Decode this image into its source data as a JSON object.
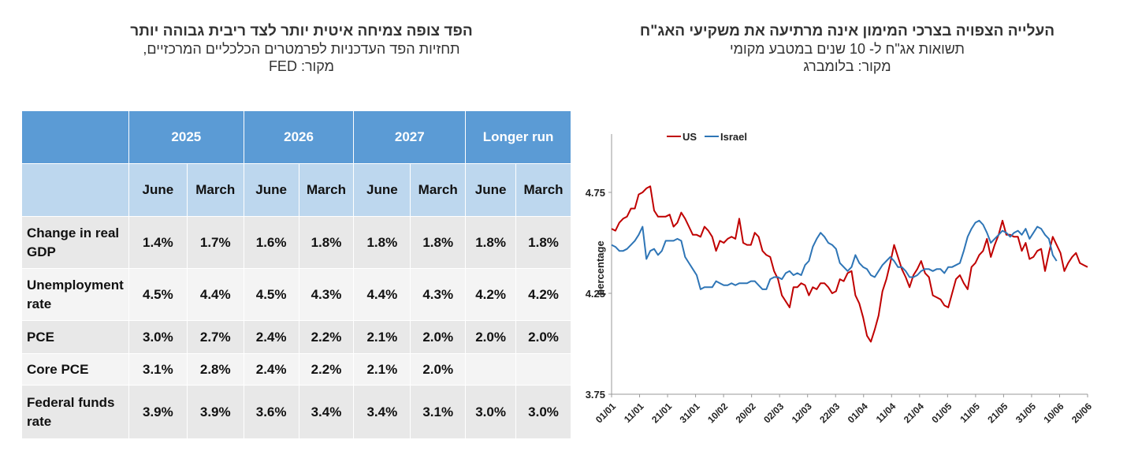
{
  "left_panel": {
    "title": "הפד צופה צמיחה איטית יותר לצד ריבית גבוהה יותר",
    "subtitle": "תחזיות הפד העדכניות לפרמטרים הכלכליים המרכזיים,",
    "source": "מקור: FED"
  },
  "right_panel": {
    "title": "העלייה הצפויה בצרכי המימון אינה מרתיעה את משקיעי האג\"ח",
    "subtitle": "תשואות אג\"ח ל- 10 שנים במטבע מקומי",
    "source": "מקור: בלומברג"
  },
  "table": {
    "years": [
      "2025",
      "2026",
      "2027",
      "Longer run"
    ],
    "months": [
      "June",
      "March",
      "June",
      "March",
      "June",
      "March",
      "June",
      "March"
    ],
    "rows": [
      {
        "label": "Change in real GDP",
        "values": [
          "1.4%",
          "1.7%",
          "1.6%",
          "1.8%",
          "1.8%",
          "1.8%",
          "1.8%",
          "1.8%"
        ]
      },
      {
        "label": "Unemployment rate",
        "values": [
          "4.5%",
          "4.4%",
          "4.5%",
          "4.3%",
          "4.4%",
          "4.3%",
          "4.2%",
          "4.2%"
        ]
      },
      {
        "label": "PCE",
        "values": [
          "3.0%",
          "2.7%",
          "2.4%",
          "2.2%",
          "2.1%",
          "2.0%",
          "2.0%",
          "2.0%"
        ]
      },
      {
        "label": "Core PCE",
        "values": [
          "3.1%",
          "2.8%",
          "2.4%",
          "2.2%",
          "2.1%",
          "2.0%",
          "",
          ""
        ]
      },
      {
        "label": "Federal funds rate",
        "values": [
          "3.9%",
          "3.9%",
          "3.6%",
          "3.4%",
          "3.4%",
          "3.1%",
          "3.0%",
          "3.0%"
        ]
      }
    ]
  },
  "chart_data": {
    "type": "line",
    "ylabel": "percentage",
    "ylim": [
      3.75,
      5.0
    ],
    "yticks": [
      "3.75",
      "4.25",
      "4.75"
    ],
    "x_ticks": [
      "01/01",
      "11/01",
      "21/01",
      "31/01",
      "10/02",
      "20/02",
      "02/03",
      "12/03",
      "22/03",
      "01/04",
      "11/04",
      "21/04",
      "01/05",
      "11/05",
      "21/05",
      "31/05",
      "10/06",
      "20/06"
    ],
    "legend_position": "top-left",
    "series": [
      {
        "name": "US",
        "color": "#c00000",
        "values": [
          4.57,
          4.56,
          4.6,
          4.62,
          4.63,
          4.67,
          4.67,
          4.74,
          4.75,
          4.77,
          4.78,
          4.66,
          4.63,
          4.63,
          4.63,
          4.64,
          4.58,
          4.6,
          4.65,
          4.62,
          4.58,
          4.54,
          4.54,
          4.53,
          4.58,
          4.56,
          4.53,
          4.46,
          4.51,
          4.5,
          4.52,
          4.53,
          4.52,
          4.62,
          4.5,
          4.49,
          4.49,
          4.55,
          4.53,
          4.46,
          4.44,
          4.43,
          4.36,
          4.32,
          4.24,
          4.21,
          4.18,
          4.28,
          4.28,
          4.3,
          4.29,
          4.24,
          4.28,
          4.27,
          4.3,
          4.3,
          4.28,
          4.25,
          4.26,
          4.32,
          4.31,
          4.35,
          4.36,
          4.24,
          4.2,
          4.13,
          4.04,
          4.01,
          4.07,
          4.14,
          4.26,
          4.32,
          4.4,
          4.49,
          4.43,
          4.37,
          4.33,
          4.28,
          4.34,
          4.37,
          4.41,
          4.35,
          4.33,
          4.24,
          4.23,
          4.22,
          4.19,
          4.18,
          4.25,
          4.32,
          4.34,
          4.3,
          4.27,
          4.38,
          4.4,
          4.44,
          4.46,
          4.52,
          4.43,
          4.49,
          4.54,
          4.61,
          4.54,
          4.54,
          4.53,
          4.53,
          4.46,
          4.5,
          4.42,
          4.43,
          4.46,
          4.47,
          4.36,
          4.45,
          4.53,
          4.49,
          4.45,
          4.36,
          4.4,
          4.43,
          4.45,
          4.4,
          4.39,
          4.38
        ]
      },
      {
        "name": "Israel",
        "color": "#2e75b6",
        "values": [
          4.49,
          4.48,
          4.46,
          4.46,
          4.47,
          4.49,
          4.51,
          4.54,
          4.58,
          4.42,
          4.46,
          4.47,
          4.44,
          4.46,
          4.51,
          4.51,
          4.51,
          4.52,
          4.51,
          4.43,
          4.4,
          4.37,
          4.34,
          4.27,
          4.28,
          4.28,
          4.28,
          4.31,
          4.3,
          4.29,
          4.29,
          4.3,
          4.29,
          4.3,
          4.3,
          4.3,
          4.31,
          4.31,
          4.29,
          4.27,
          4.27,
          4.32,
          4.33,
          4.33,
          4.32,
          4.35,
          4.36,
          4.34,
          4.35,
          4.34,
          4.39,
          4.41,
          4.48,
          4.52,
          4.55,
          4.53,
          4.5,
          4.49,
          4.47,
          4.4,
          4.38,
          4.36,
          4.38,
          4.44,
          4.4,
          4.38,
          4.37,
          4.34,
          4.33,
          4.36,
          4.39,
          4.41,
          4.43,
          4.41,
          4.38,
          4.38,
          4.36,
          4.33,
          4.33,
          4.34,
          4.36,
          4.37,
          4.37,
          4.36,
          4.37,
          4.37,
          4.35,
          4.38,
          4.38,
          4.39,
          4.4,
          4.46,
          4.53,
          4.57,
          4.6,
          4.61,
          4.59,
          4.55,
          4.5,
          4.52,
          4.54,
          4.56,
          4.55,
          4.53,
          4.55,
          4.56,
          4.54,
          4.57,
          4.52,
          4.55,
          4.58,
          4.57,
          4.54,
          4.52,
          4.44,
          4.41
        ]
      }
    ]
  }
}
